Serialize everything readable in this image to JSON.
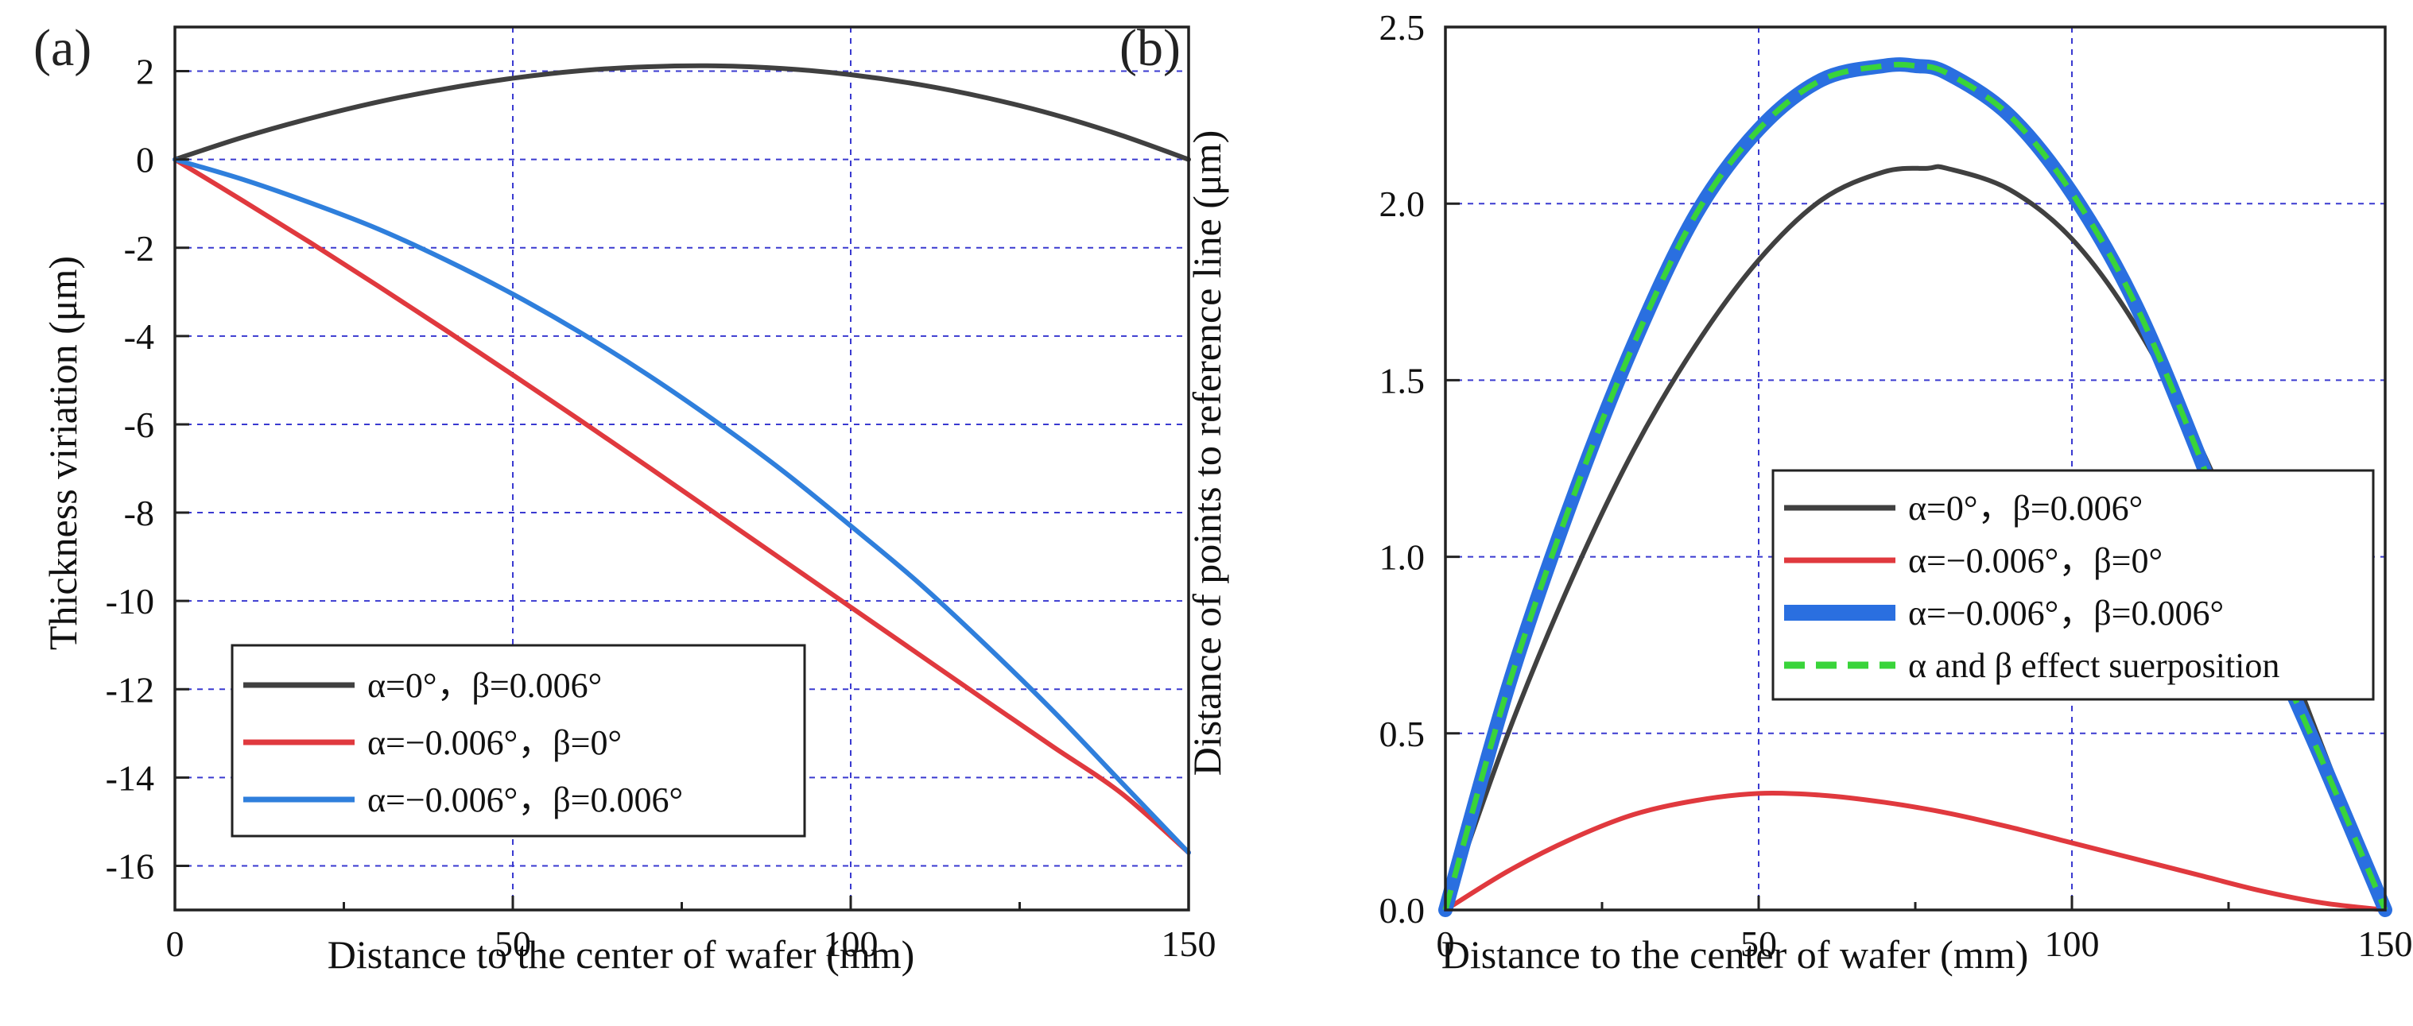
{
  "chart_data": [
    {
      "type": "line",
      "panel_label": "(a)",
      "xlabel": "Distance to the center of wafer (mm)",
      "ylabel": "Thickness viriation (μm)",
      "xlim": [
        0,
        150
      ],
      "ylim": [
        -17,
        3
      ],
      "xticks": [
        0,
        50,
        100,
        150
      ],
      "yticks": [
        2,
        0,
        -2,
        -4,
        -6,
        -8,
        -10,
        -12,
        -14,
        -16
      ],
      "grid": true,
      "legend_position": "lower-left",
      "series": [
        {
          "name": "α=0°，β=0.006°",
          "color": "#404040",
          "style": "solid",
          "x": [
            0,
            10,
            20,
            30,
            40,
            50,
            60,
            70,
            80,
            90,
            100,
            110,
            120,
            130,
            140,
            150
          ],
          "y": [
            0,
            0.5,
            0.93,
            1.3,
            1.6,
            1.84,
            2.01,
            2.1,
            2.12,
            2.06,
            1.92,
            1.7,
            1.4,
            1.02,
            0.55,
            0
          ]
        },
        {
          "name": "α=−0.006°，β=0°",
          "color": "#e0393e",
          "style": "solid",
          "x": [
            0,
            10,
            20,
            30,
            40,
            50,
            60,
            70,
            80,
            90,
            100,
            110,
            120,
            130,
            140,
            150
          ],
          "y": [
            0,
            -0.93,
            -1.88,
            -2.86,
            -3.86,
            -4.88,
            -5.91,
            -6.96,
            -8.02,
            -9.08,
            -10.14,
            -11.2,
            -12.26,
            -13.31,
            -14.35,
            -15.7
          ]
        },
        {
          "name": "α=−0.006°，β=0.006°",
          "color": "#2f7fdc",
          "style": "solid",
          "x": [
            0,
            10,
            20,
            30,
            40,
            50,
            60,
            70,
            80,
            90,
            100,
            110,
            120,
            130,
            140,
            150
          ],
          "y": [
            0,
            -0.45,
            -0.98,
            -1.57,
            -2.27,
            -3.05,
            -3.92,
            -4.88,
            -5.93,
            -7.06,
            -8.3,
            -9.58,
            -11.0,
            -12.5,
            -14.1,
            -15.7
          ]
        }
      ]
    },
    {
      "type": "line",
      "panel_label": "(b)",
      "xlabel": "Distance to the center of wafer (mm)",
      "ylabel": "Distance of points to reference line (μm)",
      "xlim": [
        0,
        150
      ],
      "ylim": [
        0,
        2.5
      ],
      "xticks": [
        0,
        50,
        100,
        150
      ],
      "yticks": [
        0.0,
        0.5,
        1.0,
        1.5,
        2.0,
        2.5
      ],
      "ytick_labels": [
        "0.0",
        "0.5",
        "1.0",
        "1.5",
        "2.0",
        "2.5"
      ],
      "grid": true,
      "legend_position": "right",
      "series": [
        {
          "name": "α=0°，β=0.006°",
          "color": "#404040",
          "style": "solid",
          "x": [
            0,
            10,
            20,
            30,
            40,
            50,
            60,
            70,
            77,
            80,
            90,
            100,
            110,
            120,
            130,
            140,
            150
          ],
          "y": [
            0,
            0.5,
            0.93,
            1.3,
            1.6,
            1.84,
            2.01,
            2.09,
            2.1,
            2.1,
            2.04,
            1.9,
            1.66,
            1.33,
            0.92,
            0.46,
            0
          ]
        },
        {
          "name": "α=−0.006°，β=0°",
          "color": "#e0393e",
          "style": "solid",
          "x": [
            0,
            10,
            20,
            30,
            40,
            50,
            60,
            70,
            80,
            90,
            100,
            110,
            120,
            130,
            140,
            150
          ],
          "y": [
            0,
            0.11,
            0.2,
            0.27,
            0.31,
            0.33,
            0.325,
            0.305,
            0.275,
            0.235,
            0.19,
            0.145,
            0.1,
            0.055,
            0.02,
            0
          ]
        },
        {
          "name": "α=−0.006°，β=0.006°",
          "color": "#2a6fe0",
          "style": "solid-thick",
          "x": [
            0,
            10,
            20,
            30,
            40,
            50,
            60,
            70,
            75,
            80,
            90,
            100,
            110,
            120,
            130,
            140,
            150
          ],
          "y": [
            0,
            0.63,
            1.15,
            1.6,
            1.97,
            2.21,
            2.35,
            2.39,
            2.39,
            2.37,
            2.25,
            2.03,
            1.72,
            1.3,
            0.83,
            0.42,
            0
          ]
        },
        {
          "name": "α and β effect suerposition",
          "color": "#39d43a",
          "style": "dashed",
          "x": [
            0,
            10,
            20,
            30,
            40,
            50,
            60,
            70,
            75,
            80,
            90,
            100,
            110,
            120,
            130,
            140,
            150
          ],
          "y": [
            0,
            0.63,
            1.15,
            1.6,
            1.97,
            2.21,
            2.35,
            2.39,
            2.39,
            2.37,
            2.25,
            2.03,
            1.72,
            1.3,
            0.83,
            0.42,
            0
          ]
        }
      ]
    }
  ]
}
